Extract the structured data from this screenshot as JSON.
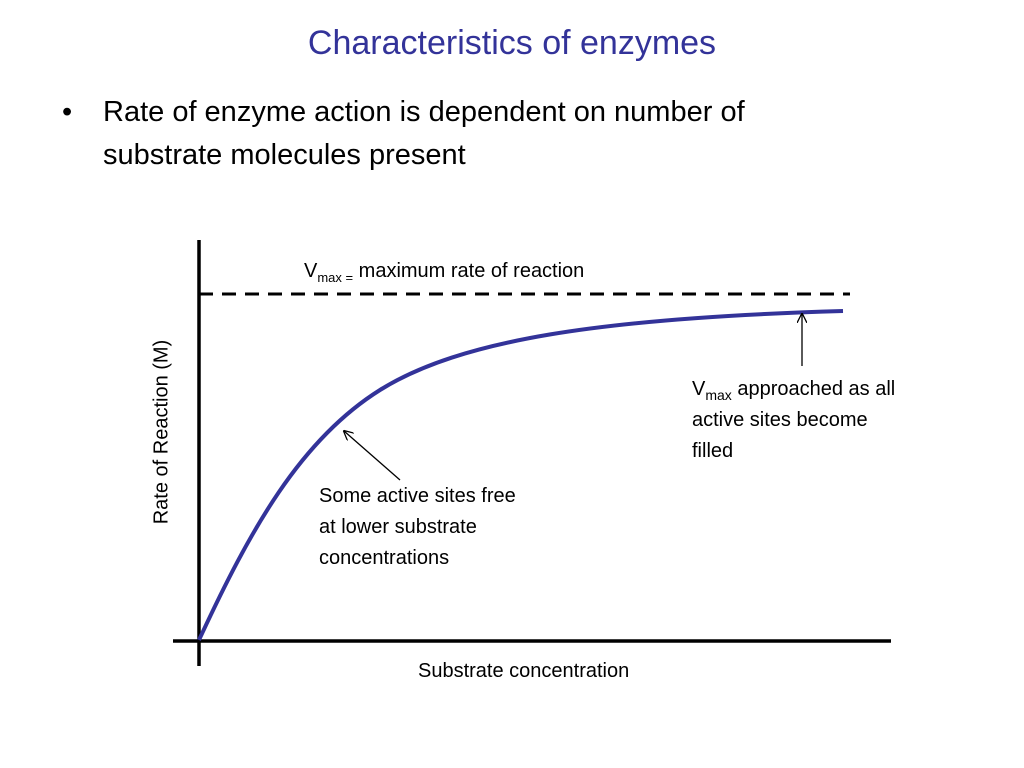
{
  "header": {
    "title": "Characteristics of enzymes"
  },
  "bullets": [
    {
      "lines": [
        "Rate of enzyme action is dependent on number of",
        "substrate molecules present"
      ]
    }
  ],
  "diagram": {
    "y_axis_label": "Rate of Reaction (M)",
    "x_axis_label": "Substrate concentration",
    "vmax_label": {
      "symbol": "V",
      "subscript": "max =",
      "text": "maximum rate of reaction"
    },
    "plateau_note": {
      "symbol": "V",
      "subscript": "max",
      "lines": [
        "approached as all",
        "active sites become",
        "filled"
      ]
    },
    "low_note": {
      "lines": [
        "Some active sites free",
        "at lower substrate",
        "concentrations"
      ]
    }
  }
}
